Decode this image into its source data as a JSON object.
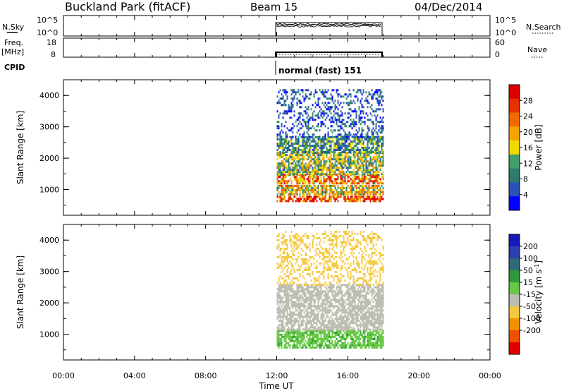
{
  "header": {
    "title": "Buckland Park (fitACF)",
    "beam": "Beam 15",
    "date": "04/Dec/2014"
  },
  "panels": {
    "nsky": {
      "left_label": "N.Sky",
      "left_ticks": [
        "10^5",
        "10^0"
      ],
      "right_ticks": [
        "10^5",
        "10^0"
      ],
      "right_label": "N.Search"
    },
    "freq": {
      "left_label_1": "Freq.",
      "left_label_2": "[MHz]",
      "left_ticks": [
        "18",
        "8"
      ],
      "right_ticks": [
        "60",
        "0"
      ],
      "right_label": "Nave"
    },
    "cpid": {
      "label": "CPID",
      "value": "normal (fast) 151"
    }
  },
  "time_axis": {
    "label": "Time UT",
    "ticks": [
      "00:00",
      "04:00",
      "08:00",
      "12:00",
      "16:00",
      "20:00",
      "00:00"
    ]
  },
  "colors": {
    "power": [
      "#0000ff",
      "#2a52b8",
      "#2e7a6e",
      "#3fa06a",
      "#f0d800",
      "#f4a400",
      "#ef6b00",
      "#e83000",
      "#dd0000"
    ],
    "velocity": [
      "#e00000",
      "#ef5000",
      "#f49000",
      "#f4c840",
      "#bcbcb0",
      "#66c843",
      "#2f9a3a",
      "#2f6a7a",
      "#2a3fb0",
      "#1a1ab8"
    ]
  },
  "chart_data": [
    {
      "type": "heatmap",
      "name": "power",
      "ylabel": "Slant Range [km]",
      "yticks": [
        1000,
        2000,
        3000,
        4000
      ],
      "ylim": [
        180,
        4500
      ],
      "x_start_ut": "12:00",
      "x_end_ut": "18:00",
      "colorbar": {
        "label": "Power [dB]",
        "ticks": [
          4,
          8,
          12,
          16,
          20,
          24,
          28
        ],
        "range": [
          0,
          32
        ]
      },
      "bands": [
        {
          "range_start_km": 600,
          "range_end_km": 800,
          "value": 26
        },
        {
          "range_start_km": 850,
          "range_end_km": 1150,
          "value": 17
        },
        {
          "range_start_km": 1200,
          "range_end_km": 1500,
          "value": 22
        },
        {
          "range_start_km": 1500,
          "range_end_km": 2200,
          "value": 14
        },
        {
          "range_start_km": 2200,
          "range_end_km": 2700,
          "value": 10
        },
        {
          "range_start_km": 2700,
          "range_end_km": 4200,
          "value": 6
        }
      ]
    },
    {
      "type": "heatmap",
      "name": "velocity",
      "ylabel": "Slant Range [km]",
      "yticks": [
        1000,
        2000,
        3000,
        4000
      ],
      "ylim": [
        180,
        4500
      ],
      "x_start_ut": "12:00",
      "x_end_ut": "18:00",
      "colorbar": {
        "label": "Velocity [m s^-1]",
        "ticks": [
          200,
          100,
          50,
          15,
          -15,
          -50,
          -100,
          -200
        ]
      },
      "bands": [
        {
          "range_start_km": 600,
          "range_end_km": 1150,
          "value": 40
        },
        {
          "range_start_km": 1150,
          "range_end_km": 2600,
          "value": 0
        },
        {
          "range_start_km": 2600,
          "range_end_km": 4300,
          "value": -30
        }
      ]
    }
  ]
}
